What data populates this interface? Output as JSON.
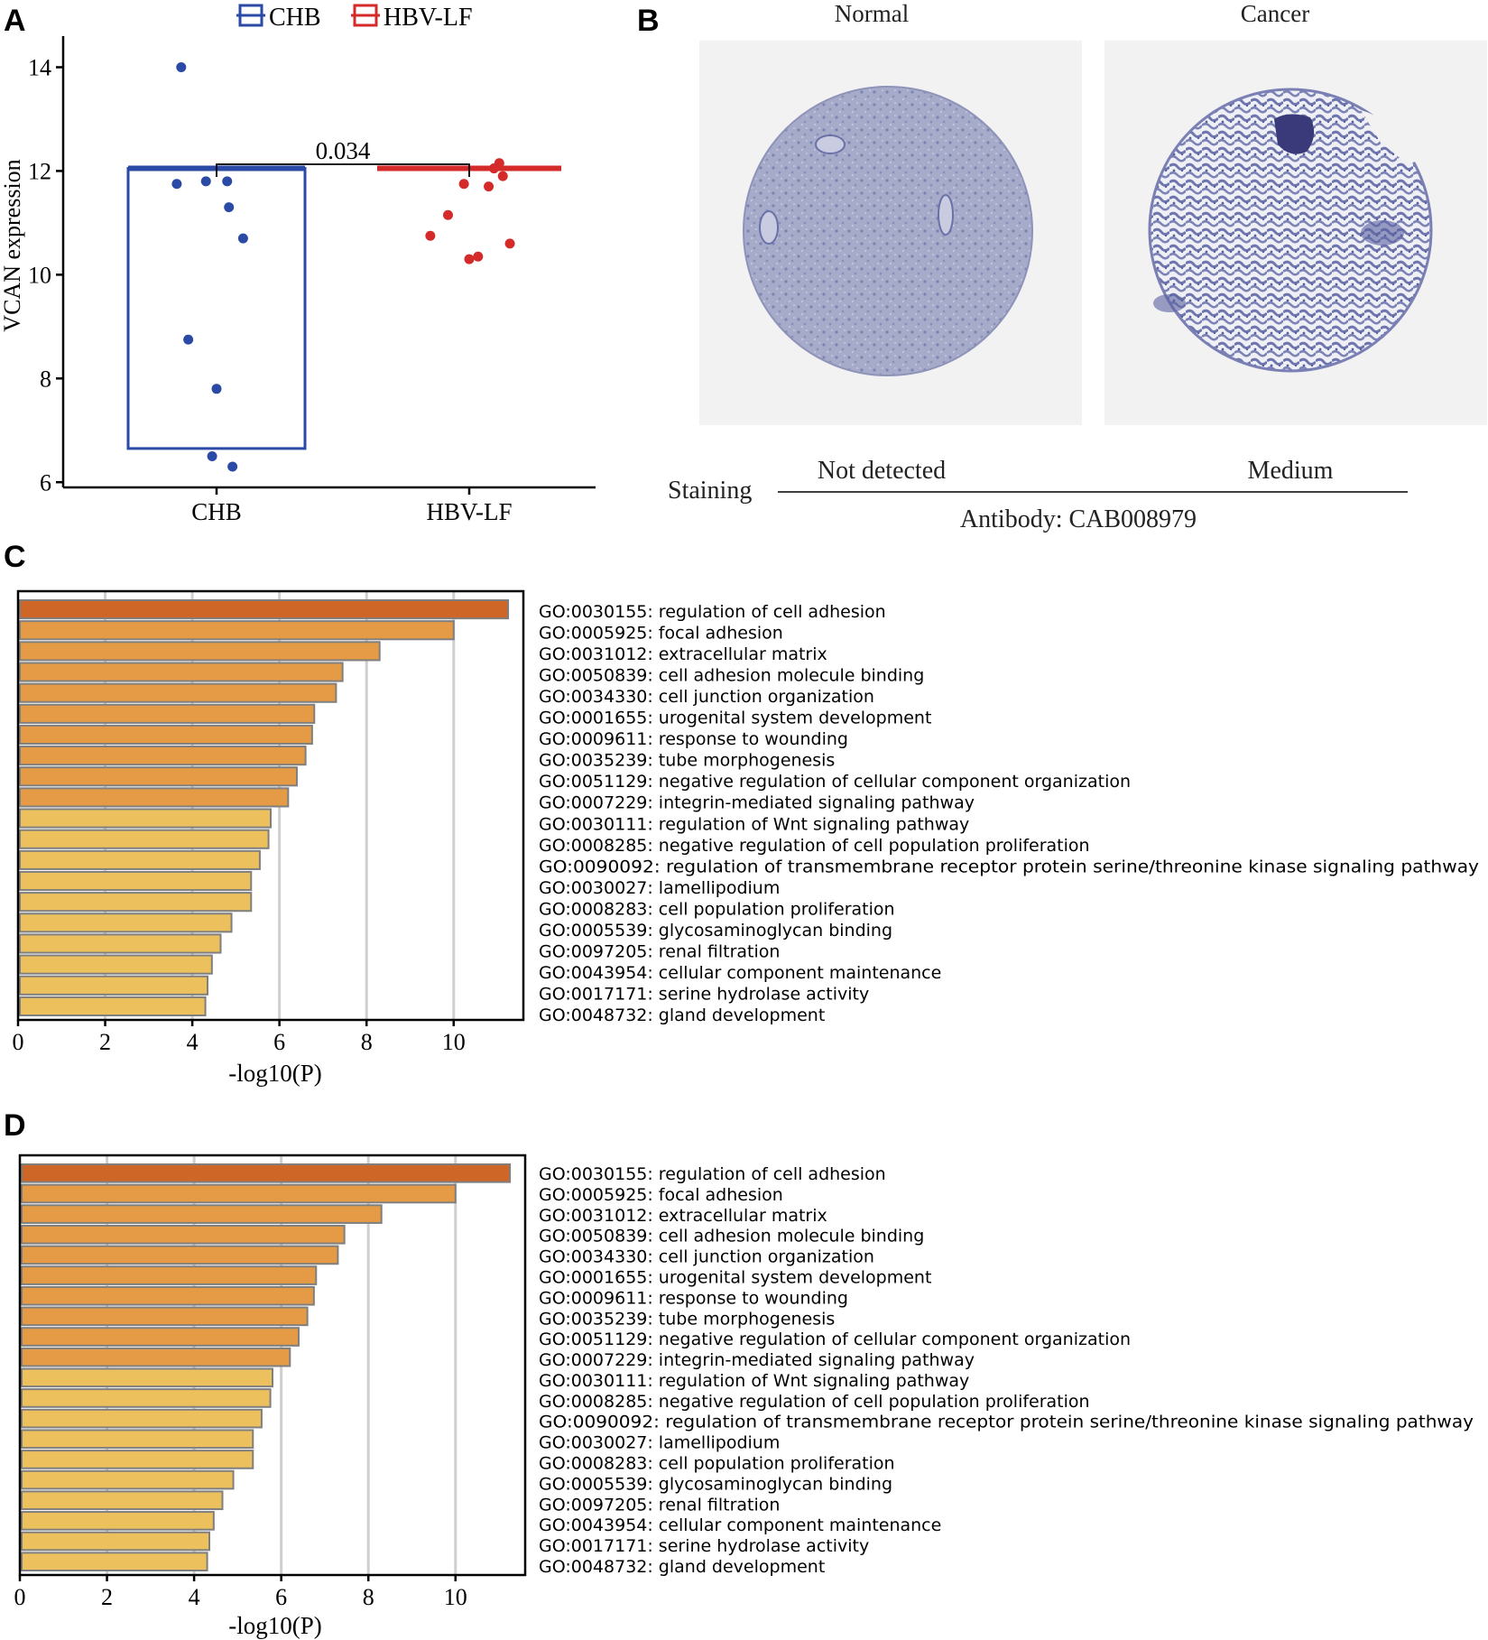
{
  "panels": {
    "A": {
      "letter": "A",
      "legend": [
        {
          "label": "CHB",
          "color": "#2a4aa6"
        },
        {
          "label": "HBV-LF",
          "color": "#d42a2a"
        }
      ],
      "ylabel": "VCAN expression",
      "yticks": [
        "6",
        "8",
        "10",
        "12",
        "14"
      ],
      "categories": [
        "CHB",
        "HBV-LF"
      ],
      "pvalue": "0.034"
    },
    "B": {
      "letter": "B",
      "col_titles": [
        "Normal",
        "Cancer"
      ],
      "staining_label": "Staining",
      "staining_values": [
        "Not detected",
        "Medium"
      ],
      "antibody": "Antibody: CAB008979",
      "tissue_colors": {
        "background": "#f2f2f2",
        "normal": "#9aa0c2",
        "cancer": "#7a80b4",
        "dark": "#3a3a7a"
      }
    },
    "C": {
      "letter": "C",
      "xlabel": "-log10(P)",
      "xticks": [
        "0",
        "2",
        "4",
        "6",
        "8",
        "10"
      ]
    },
    "D": {
      "letter": "D",
      "xlabel": "-log10(P)",
      "xticks": [
        "0",
        "2",
        "4",
        "6",
        "8",
        "10"
      ]
    }
  },
  "chart_data": [
    {
      "type": "scatter",
      "title": "",
      "xlabel": "",
      "ylabel": "VCAN expression",
      "ylim": [
        5.9,
        14.6
      ],
      "categories": [
        "CHB",
        "HBV-LF"
      ],
      "series": [
        {
          "name": "CHB",
          "color": "#2a4aa6",
          "box": {
            "low": 6.65,
            "high": 12.05
          },
          "points": [
            {
              "jitter": -0.4,
              "value": 14.0
            },
            {
              "jitter": -0.45,
              "value": 11.75
            },
            {
              "jitter": -0.12,
              "value": 11.8
            },
            {
              "jitter": 0.12,
              "value": 11.8
            },
            {
              "jitter": 0.14,
              "value": 11.3
            },
            {
              "jitter": 0.3,
              "value": 10.7
            },
            {
              "jitter": -0.32,
              "value": 8.75
            },
            {
              "jitter": 0.0,
              "value": 7.8
            },
            {
              "jitter": -0.05,
              "value": 6.5
            },
            {
              "jitter": 0.18,
              "value": 6.3
            }
          ]
        },
        {
          "name": "HBV-LF",
          "color": "#d42a2a",
          "box": {
            "low": 12.05,
            "high": 12.05
          },
          "points": [
            {
              "jitter": 0.34,
              "value": 12.15
            },
            {
              "jitter": 0.28,
              "value": 12.05
            },
            {
              "jitter": 0.38,
              "value": 11.9
            },
            {
              "jitter": -0.06,
              "value": 11.75
            },
            {
              "jitter": 0.22,
              "value": 11.7
            },
            {
              "jitter": -0.24,
              "value": 11.15
            },
            {
              "jitter": -0.44,
              "value": 10.75
            },
            {
              "jitter": 0.46,
              "value": 10.6
            },
            {
              "jitter": 0.1,
              "value": 10.35
            },
            {
              "jitter": 0.0,
              "value": 10.3
            }
          ]
        }
      ],
      "annotations": [
        {
          "text": "0.034",
          "between": [
            "CHB",
            "HBV-LF"
          ]
        }
      ]
    },
    {
      "type": "bar",
      "orientation": "horizontal",
      "title": "",
      "xlabel": "-log10(P)",
      "xlim": [
        0,
        11.6
      ],
      "gridlines": [
        2,
        4,
        6,
        8,
        10
      ],
      "categories": [
        "GO:0030155: regulation of cell adhesion",
        "GO:0005925: focal adhesion",
        "GO:0031012: extracellular matrix",
        "GO:0050839: cell adhesion molecule binding",
        "GO:0034330: cell junction organization",
        "GO:0001655: urogenital system development",
        "GO:0009611: response to wounding",
        "GO:0035239: tube morphogenesis",
        "GO:0051129: negative regulation of cellular component organization",
        "GO:0007229: integrin-mediated signaling pathway",
        "GO:0030111: regulation of Wnt signaling pathway",
        "GO:0008285: negative regulation of cell population proliferation",
        "GO:0090092: regulation of transmembrane receptor protein serine/threonine kinase signaling pathway",
        "GO:0030027: lamellipodium",
        "GO:0008283: cell population proliferation",
        "GO:0005539: glycosaminoglycan binding",
        "GO:0097205: renal filtration",
        "GO:0043954: cellular component maintenance",
        "GO:0017171: serine hydrolase activity",
        "GO:0048732: gland development"
      ],
      "values": [
        11.25,
        10.0,
        8.3,
        7.45,
        7.3,
        6.8,
        6.75,
        6.6,
        6.4,
        6.2,
        5.8,
        5.75,
        5.55,
        5.35,
        5.35,
        4.9,
        4.65,
        4.45,
        4.35,
        4.3
      ],
      "colors": [
        "#cd6626",
        "#e59b45",
        "#e59b45",
        "#e59b45",
        "#e59b45",
        "#e59b45",
        "#e59b45",
        "#e59b45",
        "#e59b45",
        "#e59b45",
        "#ecc05c",
        "#ecc05c",
        "#ecc05c",
        "#ecc05c",
        "#ecc05c",
        "#ecc05c",
        "#ecc05c",
        "#ecc05c",
        "#ecc05c",
        "#ecc05c"
      ]
    },
    {
      "type": "bar",
      "orientation": "horizontal",
      "title": "",
      "xlabel": "-log10(P)",
      "xlim": [
        0,
        11.6
      ],
      "gridlines": [
        2,
        4,
        6,
        8,
        10
      ],
      "categories": [
        "GO:0030155: regulation of cell adhesion",
        "GO:0005925: focal adhesion",
        "GO:0031012: extracellular matrix",
        "GO:0050839: cell adhesion molecule binding",
        "GO:0034330: cell junction organization",
        "GO:0001655: urogenital system development",
        "GO:0009611: response to wounding",
        "GO:0035239: tube morphogenesis",
        "GO:0051129: negative regulation of cellular component organization",
        "GO:0007229: integrin-mediated signaling pathway",
        "GO:0030111: regulation of Wnt signaling pathway",
        "GO:0008285: negative regulation of cell population proliferation",
        "GO:0090092: regulation of transmembrane receptor protein serine/threonine kinase signaling pathway",
        "GO:0030027: lamellipodium",
        "GO:0008283: cell population proliferation",
        "GO:0005539: glycosaminoglycan binding",
        "GO:0097205: renal filtration",
        "GO:0043954: cellular component maintenance",
        "GO:0017171: serine hydrolase activity",
        "GO:0048732: gland development"
      ],
      "values": [
        11.25,
        10.0,
        8.3,
        7.45,
        7.3,
        6.8,
        6.75,
        6.6,
        6.4,
        6.2,
        5.8,
        5.75,
        5.55,
        5.35,
        5.35,
        4.9,
        4.65,
        4.45,
        4.35,
        4.3
      ],
      "colors": [
        "#cd6626",
        "#e59b45",
        "#e59b45",
        "#e59b45",
        "#e59b45",
        "#e59b45",
        "#e59b45",
        "#e59b45",
        "#e59b45",
        "#e59b45",
        "#ecc05c",
        "#ecc05c",
        "#ecc05c",
        "#ecc05c",
        "#ecc05c",
        "#ecc05c",
        "#ecc05c",
        "#ecc05c",
        "#ecc05c",
        "#ecc05c"
      ]
    }
  ]
}
